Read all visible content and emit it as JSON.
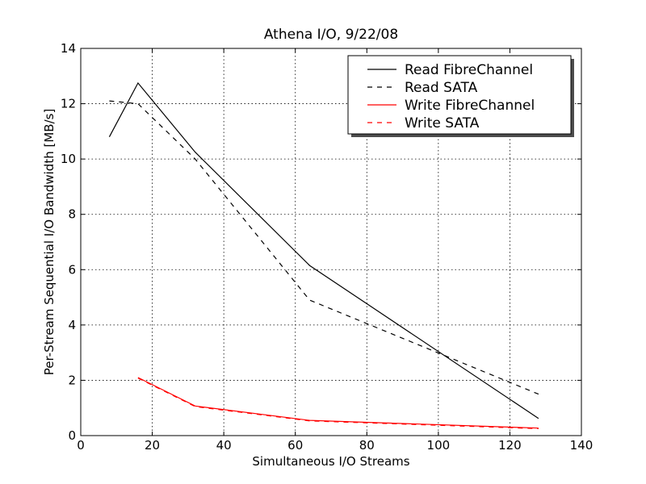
{
  "chart_data": {
    "type": "line",
    "title": "Athena I/O, 9/22/08",
    "xlabel": "Simultaneous I/O Streams",
    "ylabel": "Per-Stream Sequential I/O Bandwidth [MB/s]",
    "xlim": [
      0,
      140
    ],
    "ylim": [
      0,
      14
    ],
    "xticks": [
      0,
      20,
      40,
      60,
      80,
      100,
      120,
      140
    ],
    "yticks": [
      0,
      2,
      4,
      6,
      8,
      10,
      12,
      14
    ],
    "grid": true,
    "legend_position": "top-right",
    "series": [
      {
        "name": "Read FibreChannel",
        "color": "#000000",
        "dash": "solid",
        "x": [
          8,
          16,
          32,
          64,
          128
        ],
        "y": [
          10.8,
          12.75,
          10.25,
          6.15,
          0.62
        ]
      },
      {
        "name": "Read SATA",
        "color": "#000000",
        "dash": "dashed",
        "x": [
          8,
          16,
          32,
          64,
          128
        ],
        "y": [
          12.1,
          12.0,
          10.0,
          4.9,
          1.5
        ]
      },
      {
        "name": "Write FibreChannel",
        "color": "#ff0000",
        "dash": "solid",
        "x": [
          16,
          32,
          64,
          128
        ],
        "y": [
          2.1,
          1.07,
          0.55,
          0.27
        ]
      },
      {
        "name": "Write SATA",
        "color": "#ff0000",
        "dash": "dashed",
        "x": [
          16,
          32,
          64,
          128
        ],
        "y": [
          2.08,
          1.05,
          0.53,
          0.25
        ]
      }
    ]
  }
}
